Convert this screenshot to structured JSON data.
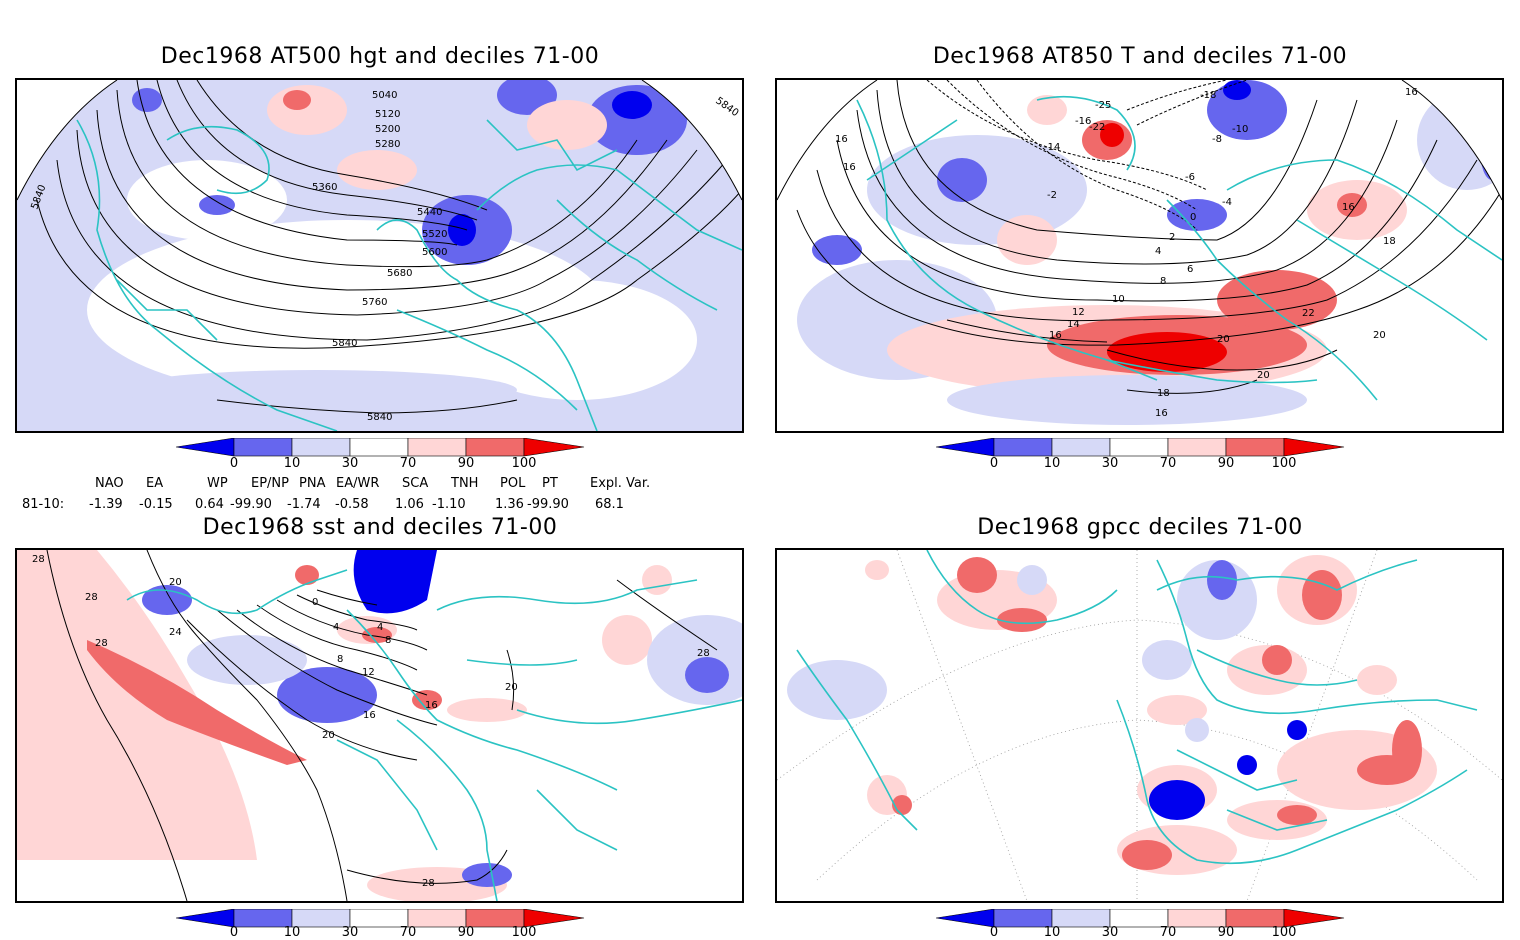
{
  "panels": [
    {
      "id": "p1",
      "title": "Dec1968 AT500 hgt and deciles 71-00",
      "contour_labels": [
        "5040",
        "5120",
        "5200",
        "5280",
        "5360",
        "5440",
        "5520",
        "5600",
        "5680",
        "5760",
        "5840",
        "5840",
        "5840",
        "5840"
      ]
    },
    {
      "id": "p2",
      "title": "Dec1968 AT850 T and deciles 71-00",
      "contour_labels": [
        "-25",
        "-22",
        "-18",
        "-16",
        "-14",
        "-10",
        "-8",
        "-6",
        "-4",
        "-2",
        "0",
        "2",
        "4",
        "6",
        "8",
        "10",
        "12",
        "14",
        "16",
        "16",
        "16",
        "16",
        "18",
        "18",
        "20",
        "20",
        "20",
        "22",
        "16",
        "16"
      ]
    },
    {
      "id": "p3",
      "title": "Dec1968 sst and deciles 71-00",
      "contour_labels": [
        "28",
        "28",
        "20",
        "24",
        "0",
        "4",
        "4",
        "8",
        "8",
        "12",
        "16",
        "16",
        "20",
        "20",
        "28",
        "28",
        "28"
      ]
    },
    {
      "id": "p4",
      "title": "Dec1968 gpcc deciles 71-00"
    }
  ],
  "colorbar": {
    "labels": [
      "0",
      "10",
      "30",
      "70",
      "90",
      "100"
    ],
    "colors": [
      "#0000ee",
      "#6666ee",
      "#d6d9f7",
      "#ffffff",
      "#ffd6d6",
      "#f06a6a",
      "#ee0000"
    ]
  },
  "teleconnections": {
    "headers": [
      "NAO",
      "EA",
      "WP",
      "EP/NP",
      "PNA",
      "EA/WR",
      "SCA",
      "TNH",
      "POL",
      "PT",
      "Expl. Var."
    ],
    "row_label": "81-10:",
    "values": [
      "-1.39",
      "-0.15",
      "0.64",
      "-99.90",
      "-1.74",
      "-0.58",
      "1.06",
      "-1.10",
      "1.36",
      "-99.90",
      "68.1"
    ]
  },
  "colors": {
    "coast": "#2bc3c3",
    "contour": "#000000",
    "grid": "#999999"
  }
}
